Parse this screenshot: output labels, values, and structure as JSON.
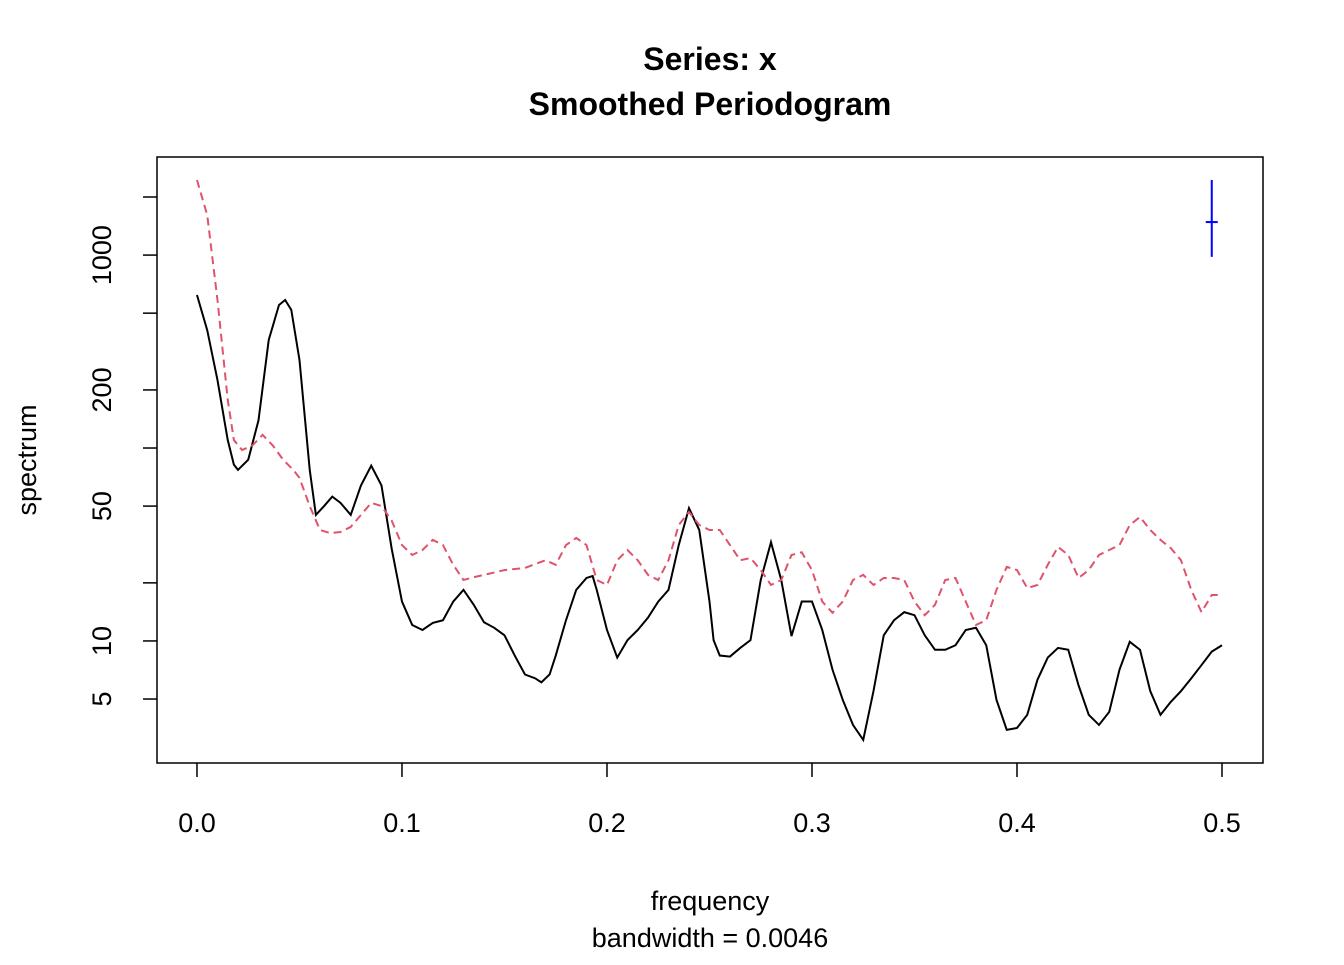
{
  "chart_data": {
    "type": "line",
    "title": "Series: x",
    "subtitle": "Smoothed Periodogram",
    "xlabel": "frequency",
    "xlabel_sub": "bandwidth = 0.0046",
    "ylabel": "spectrum",
    "xlim": [
      -0.0195,
      0.52
    ],
    "ylim": [
      2.33,
      3224
    ],
    "ylog": true,
    "xticks": [
      {
        "value": 0,
        "label": "0.0"
      },
      0.1,
      0.2,
      0.3,
      0.4,
      0.5
    ],
    "yticks": [
      5,
      10,
      {
        "value": 20,
        "label": null
      },
      50,
      {
        "value": 100,
        "label": null
      },
      200,
      {
        "value": 500,
        "label": null
      },
      1000,
      {
        "value": 2000,
        "label": null
      }
    ],
    "series": [
      {
        "color": "#000000",
        "linestyle": "solid",
        "x": [
          0,
          0.005,
          0.01,
          0.015,
          0.018,
          0.02,
          0.025,
          0.03,
          0.035,
          0.04,
          0.043,
          0.046,
          0.05,
          0.055,
          0.058,
          0.062,
          0.066,
          0.07,
          0.075,
          0.08,
          0.085,
          0.09,
          0.095,
          0.1,
          0.105,
          0.11,
          0.115,
          0.12,
          0.125,
          0.13,
          0.135,
          0.14,
          0.145,
          0.15,
          0.155,
          0.16,
          0.165,
          0.168,
          0.172,
          0.175,
          0.18,
          0.185,
          0.19,
          0.193,
          0.195,
          0.2,
          0.205,
          0.21,
          0.215,
          0.22,
          0.225,
          0.23,
          0.235,
          0.24,
          0.245,
          0.25,
          0.252,
          0.255,
          0.26,
          0.265,
          0.27,
          0.275,
          0.28,
          0.285,
          0.29,
          0.295,
          0.3,
          0.305,
          0.31,
          0.315,
          0.32,
          0.325,
          0.33,
          0.335,
          0.34,
          0.345,
          0.35,
          0.355,
          0.36,
          0.365,
          0.37,
          0.375,
          0.38,
          0.385,
          0.39,
          0.395,
          0.4,
          0.405,
          0.41,
          0.415,
          0.42,
          0.425,
          0.43,
          0.435,
          0.44,
          0.445,
          0.45,
          0.455,
          0.46,
          0.465,
          0.47,
          0.475,
          0.48,
          0.485,
          0.49,
          0.495,
          0.5
        ],
        "values": [
          621,
          408,
          225,
          110,
          82,
          77,
          87,
          139,
          363,
          551,
          585,
          520,
          286,
          77,
          45,
          50,
          56,
          52,
          45,
          64,
          81,
          64,
          30,
          16,
          12.1,
          11.4,
          12.4,
          12.8,
          16,
          18.4,
          15.4,
          12.5,
          11.7,
          10.7,
          8.4,
          6.7,
          6.4,
          6.1,
          6.7,
          8.4,
          12.8,
          18.4,
          21.2,
          21.7,
          18.4,
          11.4,
          8.2,
          10.1,
          11.4,
          13.2,
          16,
          18.4,
          31.4,
          48.8,
          37.6,
          16,
          10.1,
          8.4,
          8.3,
          9.2,
          10.1,
          20.7,
          32.5,
          20.7,
          10.6,
          16,
          16,
          11.4,
          7.1,
          4.95,
          3.67,
          3.07,
          5.5,
          10.7,
          12.8,
          14.1,
          13.6,
          10.7,
          9,
          9,
          9.5,
          11.4,
          11.7,
          9.5,
          4.95,
          3.46,
          3.54,
          4.14,
          6.3,
          8.2,
          9.2,
          9,
          5.9,
          4.14,
          3.67,
          4.29,
          7.1,
          9.9,
          9,
          5.5,
          4.14,
          4.83,
          5.5,
          6.4,
          7.5,
          8.8,
          9.5
        ]
      },
      {
        "color": "#DF536B",
        "linestyle": "dashed",
        "x": [
          0,
          0.005,
          0.01,
          0.015,
          0.018,
          0.022,
          0.027,
          0.032,
          0.037,
          0.042,
          0.047,
          0.05,
          0.055,
          0.06,
          0.065,
          0.07,
          0.075,
          0.08,
          0.085,
          0.09,
          0.095,
          0.1,
          0.105,
          0.11,
          0.115,
          0.12,
          0.125,
          0.13,
          0.135,
          0.14,
          0.15,
          0.16,
          0.17,
          0.175,
          0.18,
          0.185,
          0.19,
          0.195,
          0.2,
          0.205,
          0.21,
          0.215,
          0.22,
          0.225,
          0.23,
          0.235,
          0.24,
          0.245,
          0.25,
          0.255,
          0.26,
          0.265,
          0.27,
          0.275,
          0.28,
          0.285,
          0.29,
          0.295,
          0.3,
          0.305,
          0.31,
          0.315,
          0.32,
          0.325,
          0.33,
          0.335,
          0.34,
          0.345,
          0.35,
          0.355,
          0.36,
          0.365,
          0.37,
          0.375,
          0.38,
          0.385,
          0.39,
          0.395,
          0.4,
          0.405,
          0.41,
          0.415,
          0.42,
          0.425,
          0.43,
          0.435,
          0.44,
          0.445,
          0.45,
          0.455,
          0.46,
          0.465,
          0.47,
          0.475,
          0.48,
          0.485,
          0.49,
          0.495,
          0.5
        ],
        "values": [
          2450,
          1611,
          585,
          178,
          110,
          97.6,
          103,
          117,
          103,
          87,
          77,
          70,
          50,
          37.6,
          36.2,
          36.7,
          39,
          45,
          52,
          50,
          42,
          31.4,
          27.9,
          29.6,
          33.4,
          31.4,
          24.8,
          20.7,
          21.4,
          22,
          23.3,
          23.9,
          26.2,
          24.8,
          31.4,
          34.2,
          31.4,
          20.7,
          19.5,
          26.2,
          29.6,
          26.2,
          22,
          20.7,
          26.2,
          39.9,
          46.6,
          39.9,
          37.6,
          37.6,
          31.4,
          26.2,
          26.9,
          23.3,
          19.5,
          20.7,
          27.9,
          28.8,
          23.3,
          16,
          14,
          16,
          20.7,
          22,
          19.5,
          21.2,
          21.2,
          20.7,
          16,
          13.6,
          15.4,
          20.7,
          21.2,
          16,
          12.1,
          12.8,
          18.4,
          24.2,
          23.3,
          18.8,
          19.5,
          24.8,
          30.7,
          27.9,
          21.2,
          23.3,
          27.9,
          29.6,
          31.4,
          39.9,
          43.9,
          37.6,
          33.4,
          30.3,
          26.2,
          18.4,
          14.1,
          17.3,
          17.3
        ]
      }
    ],
    "ci_bar": {
      "color": "#0000FF",
      "x": 0.495,
      "center": 1483,
      "lower": 979,
      "upper": 2450
    }
  }
}
